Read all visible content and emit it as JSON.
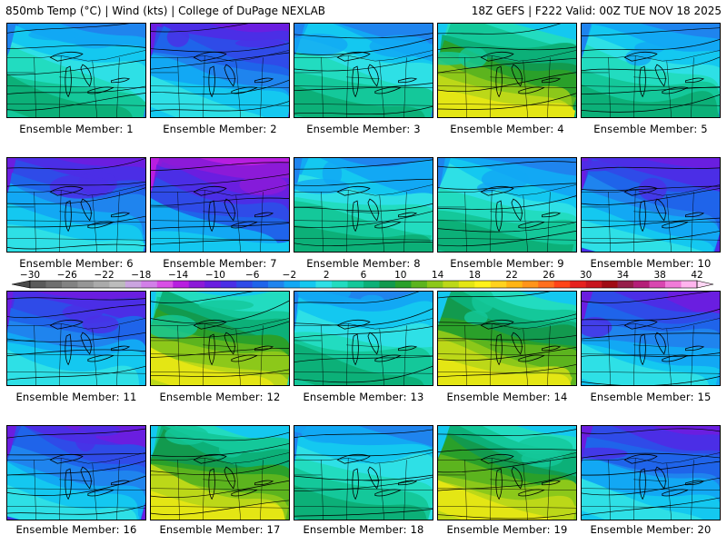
{
  "header": {
    "left": "850mb Temp (°C) | Wind (kts) | College of DuPage NEXLAB",
    "right": "18Z GEFS | F222 Valid: 00Z TUE NOV 18 2025"
  },
  "caption_prefix": "Ensemble Member:",
  "members": [
    {
      "label": "1",
      "theme": "cyan"
    },
    {
      "label": "2",
      "theme": "blue"
    },
    {
      "label": "3",
      "theme": "cyan"
    },
    {
      "label": "4",
      "theme": "green"
    },
    {
      "label": "5",
      "theme": "cyan"
    },
    {
      "label": "6",
      "theme": "blue"
    },
    {
      "label": "7",
      "theme": "purple"
    },
    {
      "label": "8",
      "theme": "cyan"
    },
    {
      "label": "9",
      "theme": "cyan"
    },
    {
      "label": "10",
      "theme": "blue"
    },
    {
      "label": "11",
      "theme": "blue"
    },
    {
      "label": "12",
      "theme": "green"
    },
    {
      "label": "13",
      "theme": "cyan"
    },
    {
      "label": "14",
      "theme": "green"
    },
    {
      "label": "15",
      "theme": "blue"
    },
    {
      "label": "16",
      "theme": "blue"
    },
    {
      "label": "17",
      "theme": "green"
    },
    {
      "label": "18",
      "theme": "cyan"
    },
    {
      "label": "19",
      "theme": "green"
    },
    {
      "label": "20",
      "theme": "blue"
    }
  ],
  "colorbar": {
    "ticks": [
      "-30",
      "-26",
      "-22",
      "-18",
      "-14",
      "-10",
      "-6",
      "-2",
      "2",
      "6",
      "10",
      "14",
      "18",
      "22",
      "26",
      "30",
      "34",
      "38",
      "42"
    ],
    "colors": [
      "#5a5a5a",
      "#6e6e6e",
      "#828282",
      "#969696",
      "#aaaaaa",
      "#bcbcbc",
      "#caa4e0",
      "#d27fe8",
      "#d94fe6",
      "#b81ee0",
      "#8c1ad8",
      "#6a1ee0",
      "#4b2ee6",
      "#2f4be8",
      "#1f64ea",
      "#1f84ee",
      "#12a8f4",
      "#14c8f0",
      "#2ee0e6",
      "#22dcc0",
      "#14c89a",
      "#0cb078",
      "#129a4e",
      "#2aa02a",
      "#5cb41e",
      "#8cc81a",
      "#bcd818",
      "#e4e614",
      "#fff21a",
      "#ffd21e",
      "#ffb414",
      "#ff941a",
      "#ff6e1e",
      "#ff4418",
      "#e6201e",
      "#c8141e",
      "#a00a14",
      "#961e4a",
      "#b41e78",
      "#d846b0",
      "#f07ad8",
      "#ffb4ee"
    ]
  },
  "theme_colors": {
    "cyan": [
      "#1f84ee",
      "#12a8f4",
      "#14c8f0",
      "#2ee0e6",
      "#22dcc0",
      "#14c89a",
      "#0cb078"
    ],
    "blue": [
      "#6a1ee0",
      "#4b2ee6",
      "#2f4be8",
      "#1f64ea",
      "#1f84ee",
      "#12a8f4",
      "#14c8f0",
      "#2ee0e6"
    ],
    "purple": [
      "#b81ee0",
      "#8c1ad8",
      "#6a1ee0",
      "#4b2ee6",
      "#2f4be8",
      "#1f64ea",
      "#12a8f4",
      "#14c8f0"
    ],
    "green": [
      "#14c8f0",
      "#22dcc0",
      "#14c89a",
      "#0cb078",
      "#129a4e",
      "#2aa02a",
      "#5cb41e",
      "#8cc81a",
      "#bcd818",
      "#e4e614"
    ]
  }
}
